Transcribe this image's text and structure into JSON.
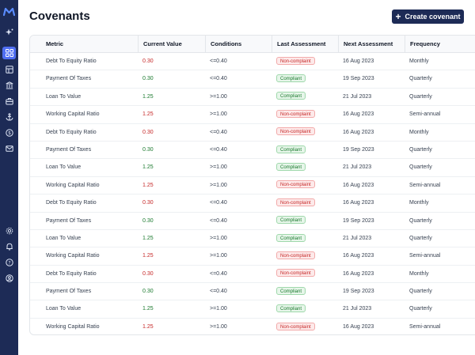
{
  "header": {
    "title": "Covenants",
    "create_label": "Create covenant"
  },
  "sidebar": {
    "icons": [
      "logo-icon",
      "sparkle-icon",
      "grid-icon",
      "ledger-icon",
      "bank-icon",
      "briefcase-icon",
      "anchor-icon",
      "dollar-icon",
      "mail-icon",
      "settings-icon",
      "bell-icon",
      "help-icon",
      "account-icon"
    ]
  },
  "table": {
    "columns": [
      "Metric",
      "Current Value",
      "Conditions",
      "Last Assessment",
      "Next Assessment",
      "Frequency"
    ],
    "rows": [
      {
        "metric": "Debt To Equity Ratio",
        "value": "0.30",
        "value_status": "bad",
        "condition": "<=0.40",
        "last": "Non-complaint",
        "last_status": "bad",
        "next": "16 Aug 2023",
        "freq": "Monthly"
      },
      {
        "metric": "Payment Of Taxes",
        "value": "0.30",
        "value_status": "ok",
        "condition": "<=0.40",
        "last": "Compliant",
        "last_status": "ok",
        "next": "19 Sep 2023",
        "freq": "Quarterly"
      },
      {
        "metric": "Loan To Value",
        "value": "1.25",
        "value_status": "ok",
        "condition": ">=1.00",
        "last": "Compliant",
        "last_status": "ok",
        "next": "21 Jul 2023",
        "freq": "Quarterly"
      },
      {
        "metric": "Working Capital Ratio",
        "value": "1.25",
        "value_status": "bad",
        "condition": ">=1.00",
        "last": "Non-complaint",
        "last_status": "bad",
        "next": "16 Aug 2023",
        "freq": "Semi-annual"
      },
      {
        "metric": "Debt To Equity Ratio",
        "value": "0.30",
        "value_status": "bad",
        "condition": "<=0.40",
        "last": "Non-complaint",
        "last_status": "bad",
        "next": "16 Aug 2023",
        "freq": "Monthly"
      },
      {
        "metric": "Payment Of Taxes",
        "value": "0.30",
        "value_status": "ok",
        "condition": "<=0.40",
        "last": "Compliant",
        "last_status": "ok",
        "next": "19 Sep 2023",
        "freq": "Quarterly"
      },
      {
        "metric": "Loan To Value",
        "value": "1.25",
        "value_status": "ok",
        "condition": ">=1.00",
        "last": "Compliant",
        "last_status": "ok",
        "next": "21 Jul 2023",
        "freq": "Quarterly"
      },
      {
        "metric": "Working Capital Ratio",
        "value": "1.25",
        "value_status": "bad",
        "condition": ">=1.00",
        "last": "Non-complaint",
        "last_status": "bad",
        "next": "16 Aug 2023",
        "freq": "Semi-annual"
      },
      {
        "metric": "Debt To Equity Ratio",
        "value": "0.30",
        "value_status": "bad",
        "condition": "<=0.40",
        "last": "Non-complaint",
        "last_status": "bad",
        "next": "16 Aug 2023",
        "freq": "Monthly"
      },
      {
        "metric": "Payment Of Taxes",
        "value": "0.30",
        "value_status": "ok",
        "condition": "<=0.40",
        "last": "Compliant",
        "last_status": "ok",
        "next": "19 Sep 2023",
        "freq": "Quarterly"
      },
      {
        "metric": "Loan To Value",
        "value": "1.25",
        "value_status": "ok",
        "condition": ">=1.00",
        "last": "Compliant",
        "last_status": "ok",
        "next": "21 Jul 2023",
        "freq": "Quarterly"
      },
      {
        "metric": "Working Capital Ratio",
        "value": "1.25",
        "value_status": "bad",
        "condition": ">=1.00",
        "last": "Non-complaint",
        "last_status": "bad",
        "next": "16 Aug 2023",
        "freq": "Semi-annual"
      },
      {
        "metric": "Debt To Equity Ratio",
        "value": "0.30",
        "value_status": "bad",
        "condition": "<=0.40",
        "last": "Non-complaint",
        "last_status": "bad",
        "next": "16 Aug 2023",
        "freq": "Monthly"
      },
      {
        "metric": "Payment Of Taxes",
        "value": "0.30",
        "value_status": "ok",
        "condition": "<=0.40",
        "last": "Compliant",
        "last_status": "ok",
        "next": "19 Sep 2023",
        "freq": "Quarterly"
      },
      {
        "metric": "Loan To Value",
        "value": "1.25",
        "value_status": "ok",
        "condition": ">=1.00",
        "last": "Compliant",
        "last_status": "ok",
        "next": "21 Jul 2023",
        "freq": "Quarterly"
      },
      {
        "metric": "Working Capital Ratio",
        "value": "1.25",
        "value_status": "bad",
        "condition": ">=1.00",
        "last": "Non-complaint",
        "last_status": "bad",
        "next": "16 Aug 2023",
        "freq": "Semi-annual"
      }
    ]
  },
  "colors": {
    "sidebar": "#1d2b56",
    "active": "#4f6ef2",
    "ok": "#1b7a2e",
    "bad": "#c62828"
  }
}
